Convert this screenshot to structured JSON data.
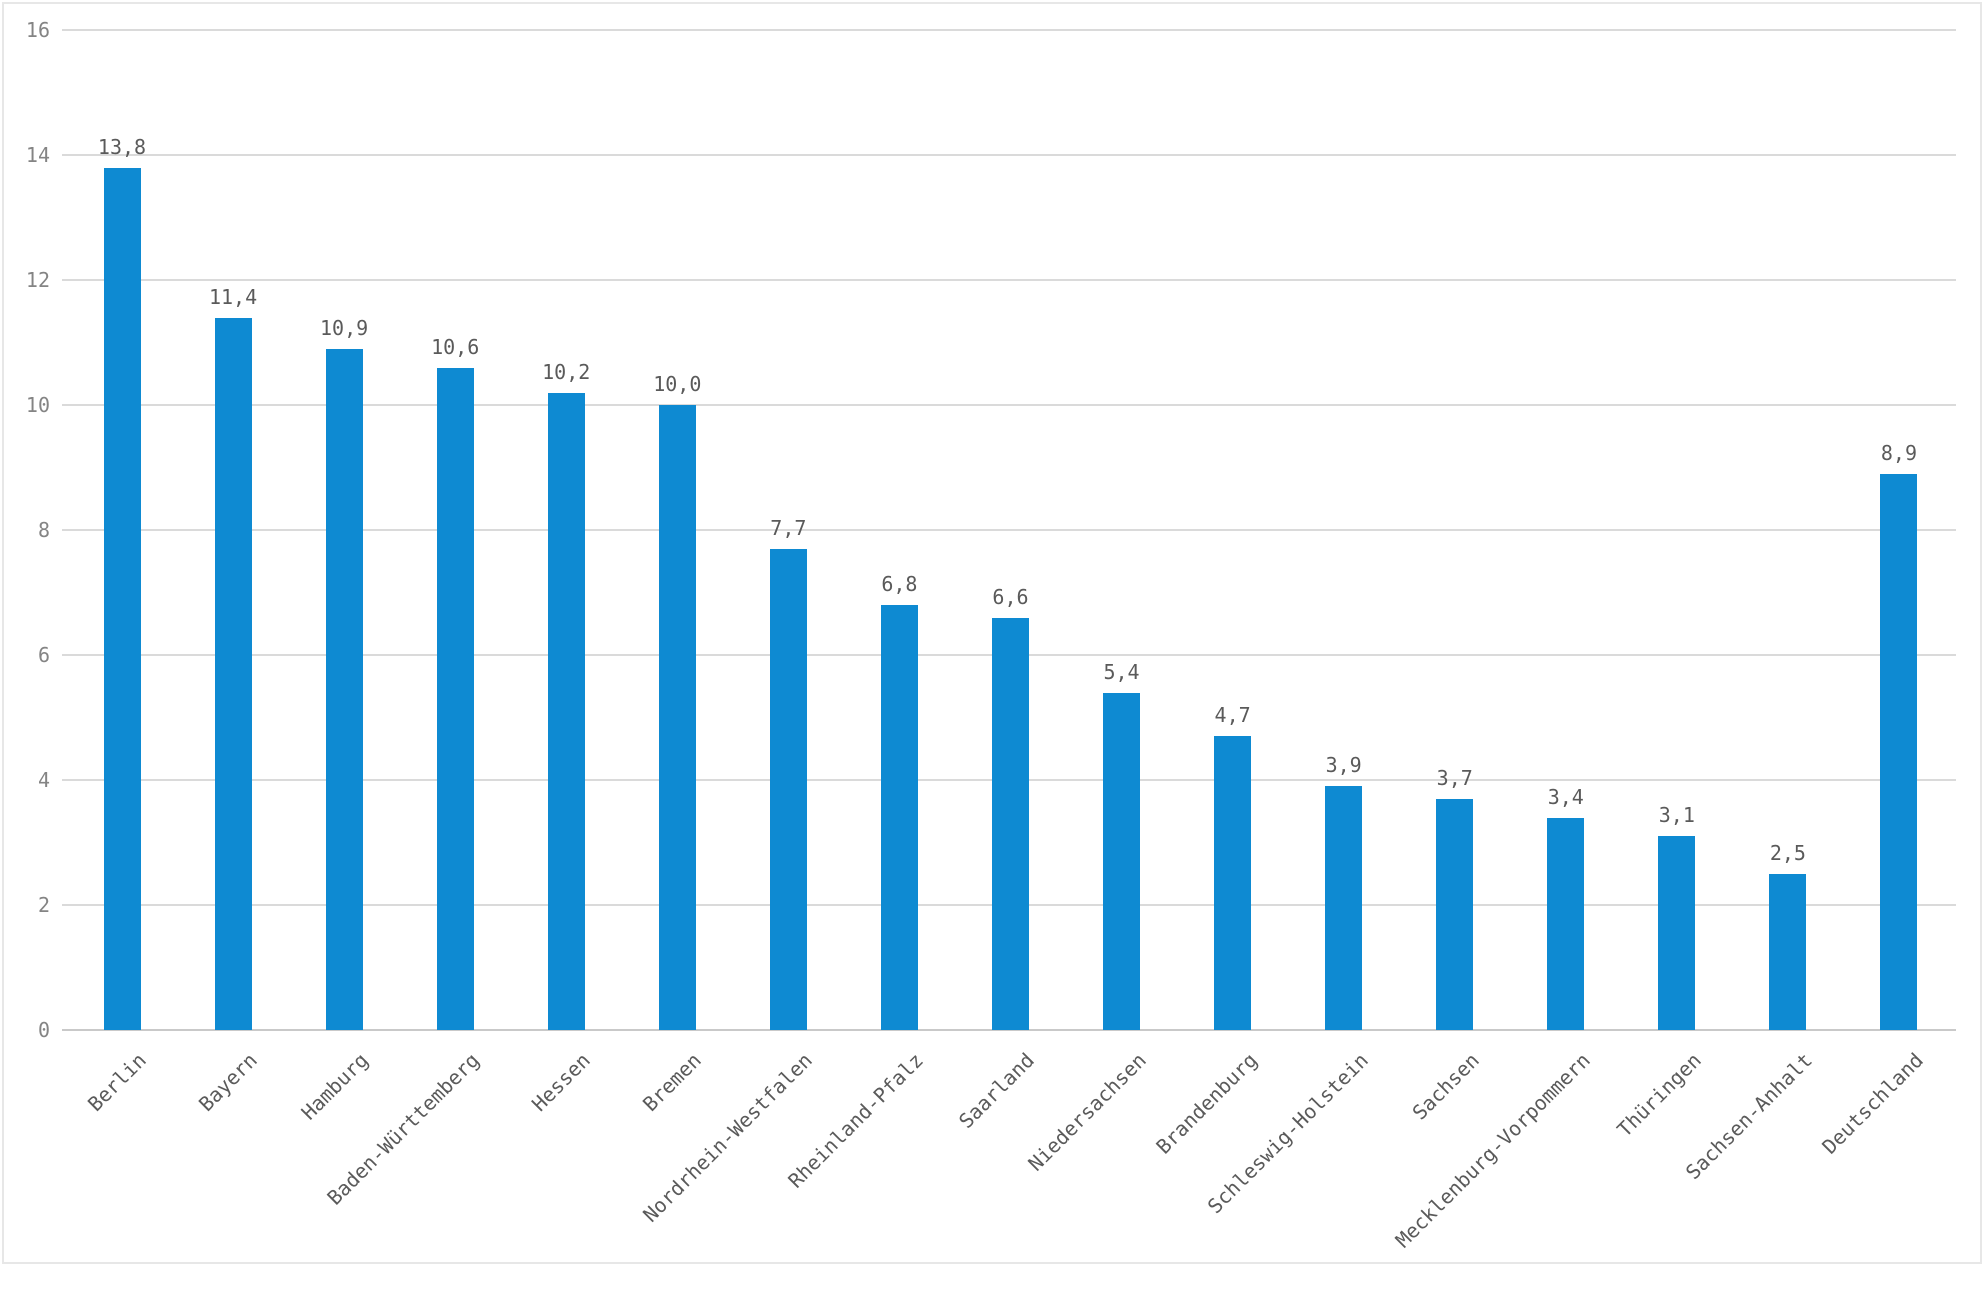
{
  "chart_data": {
    "type": "bar",
    "title": "",
    "xlabel": "",
    "ylabel": "",
    "categories": [
      "Berlin",
      "Bayern",
      "Hamburg",
      "Baden-Württemberg",
      "Hessen",
      "Bremen",
      "Nordrhein-Westfalen",
      "Rheinland-Pfalz",
      "Saarland",
      "Niedersachsen",
      "Brandenburg",
      "Schleswig-Holstein",
      "Sachsen",
      "Mecklenburg-Vorpommern",
      "Thüringen",
      "Sachsen-Anhalt",
      "Deutschland"
    ],
    "values": [
      13.8,
      11.4,
      10.9,
      10.6,
      10.2,
      10.0,
      7.7,
      6.8,
      6.6,
      5.4,
      4.7,
      3.9,
      3.7,
      3.4,
      3.1,
      2.5,
      8.9
    ],
    "value_labels": [
      "13,8",
      "11,4",
      "10,9",
      "10,6",
      "10,2",
      "10,0",
      "7,7",
      "6,8",
      "6,6",
      "5,4",
      "4,7",
      "3,9",
      "3,7",
      "3,4",
      "3,1",
      "2,5",
      "8,9"
    ],
    "ylim": [
      0,
      16
    ],
    "y_ticks": [
      0,
      2,
      4,
      6,
      8,
      10,
      12,
      14,
      16
    ],
    "grid": true,
    "legend_position": "none",
    "decimal_separator": ",",
    "colors": {
      "bar": "#0e8ad2",
      "gridline": "#dadada",
      "baseline": "#c9c9c9",
      "y_tick_label": "#848484",
      "value_label": "#5a5a5a",
      "x_label": "#5a5a5a",
      "frame_border": "#e7e7e7",
      "background": "#ffffff"
    }
  }
}
